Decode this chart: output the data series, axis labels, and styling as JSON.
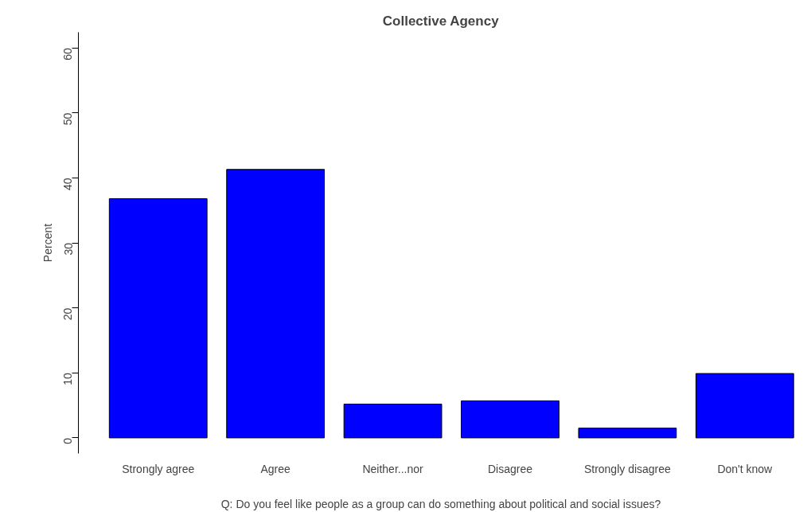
{
  "chart_data": {
    "type": "bar",
    "title": "Collective Agency",
    "xlabel": "Q: Do you feel like people as a group can do something about political and social issues?",
    "ylabel": "Percent",
    "categories": [
      "Strongly agree",
      "Agree",
      "Neither...nor",
      "Disagree",
      "Strongly disagree",
      "Don't know"
    ],
    "values": [
      36.8,
      41.3,
      5.2,
      5.7,
      1.5,
      9.9
    ],
    "color": "#0000ff",
    "ylim": [
      -2.4,
      62.4
    ],
    "yticks": [
      0,
      10,
      20,
      30,
      40,
      50,
      60
    ],
    "grid": false
  }
}
